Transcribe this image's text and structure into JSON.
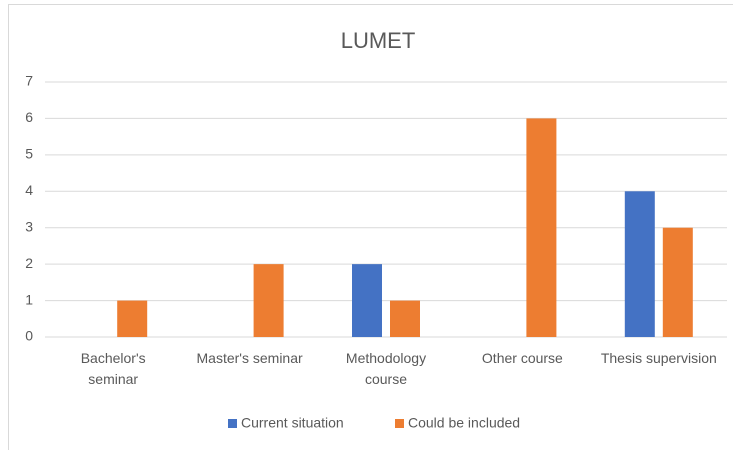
{
  "chart_data": {
    "type": "bar",
    "title": "LUMET",
    "categories": [
      "Bachelor's seminar",
      "Master's seminar",
      "Methodology course",
      "Other course",
      "Thesis supervision"
    ],
    "series": [
      {
        "name": "Current situation",
        "color": "#4472c4",
        "values": [
          0,
          0,
          2,
          0,
          4
        ]
      },
      {
        "name": "Could be included",
        "color": "#ed7d31",
        "values": [
          1,
          2,
          1,
          6,
          3
        ]
      }
    ],
    "ylim": [
      0,
      7
    ],
    "yticks": [
      0,
      1,
      2,
      3,
      4,
      5,
      6,
      7
    ],
    "grid": true,
    "legend": "bottom"
  }
}
